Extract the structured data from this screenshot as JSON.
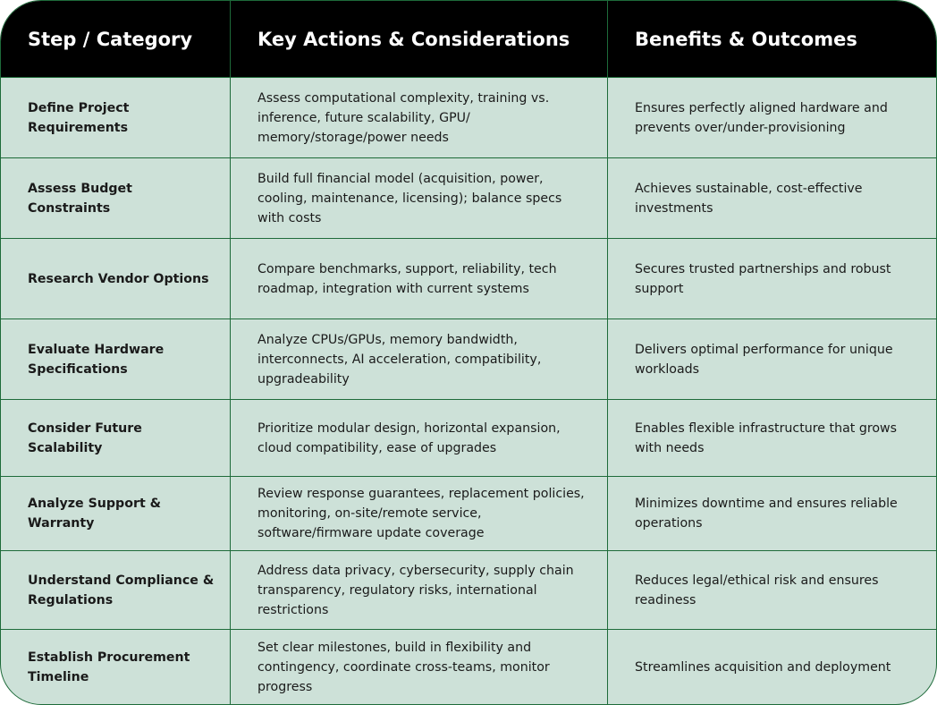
{
  "headers": [
    "Step / Category",
    "Key Actions & Considerations",
    "Benefits & Outcomes"
  ],
  "rows": [
    {
      "step": "Define Project Requirements",
      "actions": "Assess computational complexity, training vs. inference, future scalability, GPU/ memory/storage/power needs",
      "benefits": "Ensures perfectly aligned hardware and prevents over/under-provisioning"
    },
    {
      "step": "Assess Budget Constraints",
      "actions": "Build full financial model (acquisition, power, cooling, maintenance, licensing); balance specs with costs",
      "benefits": "Achieves sustainable, cost-effective investments"
    },
    {
      "step": "Research Vendor Options",
      "actions": "Compare benchmarks, support, reliability, tech roadmap, integration with current systems",
      "benefits": "Secures trusted partnerships and robust support"
    },
    {
      "step": "Evaluate Hardware Specifications",
      "actions": "Analyze CPUs/GPUs, memory bandwidth, interconnects, AI acceleration, compatibility, upgradeability",
      "benefits": "Delivers optimal performance for unique workloads"
    },
    {
      "step": "Consider Future Scalability",
      "actions": "Prioritize modular design, horizontal expansion, cloud compatibility, ease of upgrades",
      "benefits": "Enables flexible infrastructure that grows with needs"
    },
    {
      "step": "Analyze Support & Warranty",
      "actions": "Review response guarantees, replacement policies, monitoring, on-site/remote service, software/firmware update coverage",
      "benefits": "Minimizes downtime and ensures reliable operations"
    },
    {
      "step": "Understand Compliance & Regulations",
      "actions": "Address data privacy, cybersecurity, supply chain transparency, regulatory risks, international restrictions",
      "benefits": "Reduces legal/ethical risk and ensures readiness"
    },
    {
      "step": "Establish Procurement Timeline",
      "actions": "Set clear milestones, build in flexibility and contingency, coordinate cross-teams, monitor progress",
      "benefits": "Streamlines acquisition and deployment"
    }
  ],
  "colors": {
    "header_bg": "#000000",
    "body_bg": "#cde1d8",
    "border": "#1e6b3a"
  }
}
